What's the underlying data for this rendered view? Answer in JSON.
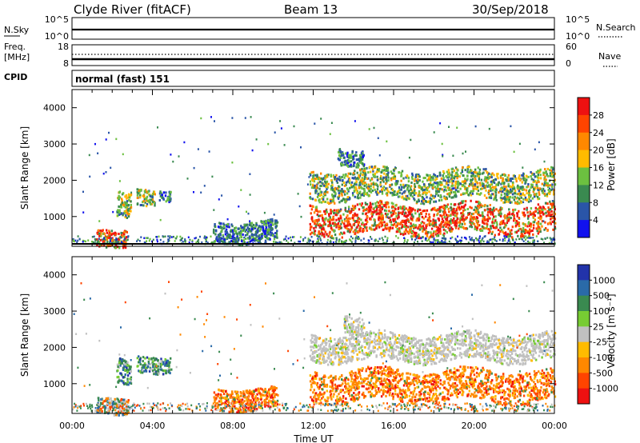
{
  "header": {
    "station": "Clyde River (fitACF)",
    "beam": "Beam 13",
    "date": "30/Sep/2018"
  },
  "status_panels": {
    "nsky_label": "N.Sky",
    "nsky_ticks": [
      "10^5",
      "10^0"
    ],
    "nsearch_label": "N.Search",
    "nsearch_ticks": [
      "10^5",
      "10^0"
    ],
    "freq_label_1": "Freq.",
    "freq_label_2": "[MHz]",
    "freq_ticks": [
      "18",
      "8"
    ],
    "nave_label": "Nave",
    "nave_ticks": [
      "60",
      "0"
    ],
    "cpid_label": "CPID",
    "cpid_value": "normal (fast) 151"
  },
  "axes": {
    "ylabel": "Slant Range [km]",
    "yticks": [
      "4000",
      "3000",
      "2000",
      "1000"
    ],
    "xticks": [
      "00:00",
      "04:00",
      "08:00",
      "12:00",
      "16:00",
      "20:00",
      "00:00"
    ],
    "xlabel": "Time UT"
  },
  "colorbars": {
    "power": {
      "label": "Power [dB]",
      "ticks": [
        "28",
        "24",
        "20",
        "16",
        "12",
        "8",
        "4"
      ],
      "colors": [
        "#ee1111",
        "#ff4400",
        "#ff8800",
        "#ffbb00",
        "#6cc040",
        "#3a8a50",
        "#2a55a8",
        "#1111ee"
      ]
    },
    "velocity": {
      "label": "Velocity [m s⁻¹]",
      "ticks": [
        "1000",
        "500",
        "100",
        "25",
        "-25",
        "-100",
        "-500",
        "-1000"
      ],
      "colors": [
        "#2233aa",
        "#2a6aa8",
        "#3a8a50",
        "#77cc33",
        "#c0c0c0",
        "#ffbb00",
        "#ff8800",
        "#ff4400",
        "#ee1111"
      ]
    }
  },
  "chart_data": [
    {
      "type": "heatmap",
      "title": "Power",
      "x_range_hours": [
        0,
        24
      ],
      "y_range_km": [
        180,
        4500
      ],
      "color_range_db": [
        0,
        32
      ],
      "regions": [
        {
          "t0": 1.2,
          "t1": 2.7,
          "r0": 220,
          "r1": 700,
          "level": "high"
        },
        {
          "t0": 2.2,
          "t1": 2.9,
          "r0": 1050,
          "r1": 1750,
          "level": "medium"
        },
        {
          "t0": 3.2,
          "t1": 4.1,
          "r0": 1350,
          "r1": 1800,
          "level": "medium"
        },
        {
          "t0": 4.3,
          "t1": 4.9,
          "r0": 1450,
          "r1": 1750,
          "level": "low"
        },
        {
          "t0": 7.0,
          "t1": 10.2,
          "r0": 320,
          "r1": 900,
          "level": "low"
        },
        {
          "t0": 11.8,
          "t1": 24.0,
          "r0": 550,
          "r1": 1350,
          "level": "high"
        },
        {
          "t0": 11.8,
          "t1": 24.0,
          "r0": 1500,
          "r1": 2300,
          "level": "medium"
        },
        {
          "t0": 13.2,
          "t1": 14.5,
          "r0": 2450,
          "r1": 2900,
          "level": "low"
        }
      ]
    },
    {
      "type": "heatmap",
      "title": "Velocity",
      "x_range_hours": [
        0,
        24
      ],
      "y_range_km": [
        180,
        4500
      ],
      "color_range_ms": [
        -1000,
        1000
      ],
      "regions": [
        {
          "t0": 1.2,
          "t1": 2.8,
          "r0": 220,
          "r1": 700,
          "level": "mixed"
        },
        {
          "t0": 2.2,
          "t1": 2.9,
          "r0": 1050,
          "r1": 1750,
          "level": "positive"
        },
        {
          "t0": 3.2,
          "t1": 4.9,
          "r0": 1350,
          "r1": 1800,
          "level": "positive"
        },
        {
          "t0": 7.0,
          "t1": 10.2,
          "r0": 320,
          "r1": 900,
          "level": "negative"
        },
        {
          "t0": 11.8,
          "t1": 24.0,
          "r0": 550,
          "r1": 1400,
          "level": "negative"
        },
        {
          "t0": 11.8,
          "t1": 24.0,
          "r0": 1650,
          "r1": 2400,
          "level": "zero"
        },
        {
          "t0": 13.5,
          "t1": 14.5,
          "r0": 2400,
          "r1": 2900,
          "level": "zero"
        }
      ]
    }
  ]
}
